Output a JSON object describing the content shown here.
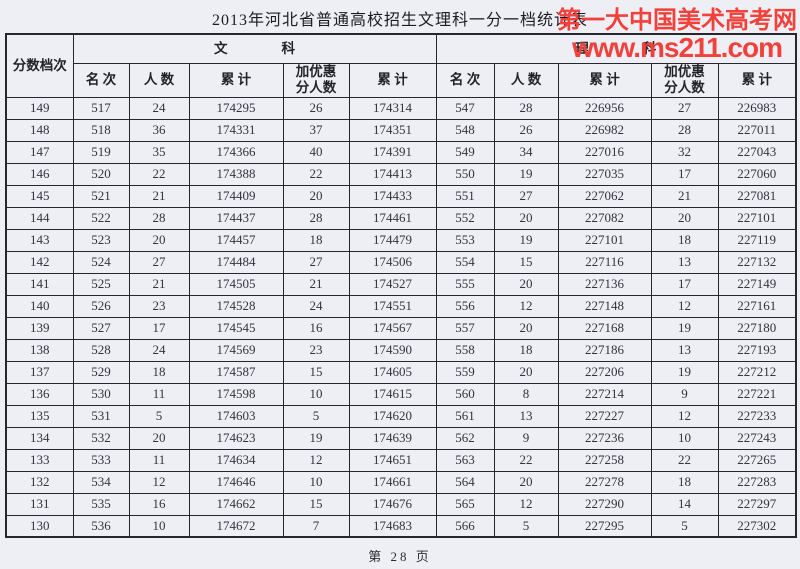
{
  "page": {
    "title": "2013年河北省普通高校招生文理科一分一档统计表",
    "footer": "第 28 页"
  },
  "watermark": {
    "line1": "第一大中国美术高考网",
    "line2": "www.ms211.com",
    "color": "#f2403a"
  },
  "table": {
    "score_col_header": "分数档次",
    "groups": [
      {
        "label": "文                科"
      },
      {
        "label": "理                科"
      }
    ],
    "sub_headers": [
      "名  次",
      "人  数",
      "累  计",
      "加优惠\n分人数",
      "累  计"
    ],
    "rows": [
      [
        149,
        517,
        24,
        174295,
        26,
        174314,
        547,
        28,
        226956,
        27,
        226983
      ],
      [
        148,
        518,
        36,
        174331,
        37,
        174351,
        548,
        26,
        226982,
        28,
        227011
      ],
      [
        147,
        519,
        35,
        174366,
        40,
        174391,
        549,
        34,
        227016,
        32,
        227043
      ],
      [
        146,
        520,
        22,
        174388,
        22,
        174413,
        550,
        19,
        227035,
        17,
        227060
      ],
      [
        145,
        521,
        21,
        174409,
        20,
        174433,
        551,
        27,
        227062,
        21,
        227081
      ],
      [
        144,
        522,
        28,
        174437,
        28,
        174461,
        552,
        20,
        227082,
        20,
        227101
      ],
      [
        143,
        523,
        20,
        174457,
        18,
        174479,
        553,
        19,
        227101,
        18,
        227119
      ],
      [
        142,
        524,
        27,
        174484,
        27,
        174506,
        554,
        15,
        227116,
        13,
        227132
      ],
      [
        141,
        525,
        21,
        174505,
        21,
        174527,
        555,
        20,
        227136,
        17,
        227149
      ],
      [
        140,
        526,
        23,
        174528,
        24,
        174551,
        556,
        12,
        227148,
        12,
        227161
      ],
      [
        139,
        527,
        17,
        174545,
        16,
        174567,
        557,
        20,
        227168,
        19,
        227180
      ],
      [
        138,
        528,
        24,
        174569,
        23,
        174590,
        558,
        18,
        227186,
        13,
        227193
      ],
      [
        137,
        529,
        18,
        174587,
        15,
        174605,
        559,
        20,
        227206,
        19,
        227212
      ],
      [
        136,
        530,
        11,
        174598,
        10,
        174615,
        560,
        8,
        227214,
        9,
        227221
      ],
      [
        135,
        531,
        5,
        174603,
        5,
        174620,
        561,
        13,
        227227,
        12,
        227233
      ],
      [
        134,
        532,
        20,
        174623,
        19,
        174639,
        562,
        9,
        227236,
        10,
        227243
      ],
      [
        133,
        533,
        11,
        174634,
        12,
        174651,
        563,
        22,
        227258,
        22,
        227265
      ],
      [
        132,
        534,
        12,
        174646,
        10,
        174661,
        564,
        20,
        227278,
        18,
        227283
      ],
      [
        131,
        535,
        16,
        174662,
        15,
        174676,
        565,
        12,
        227290,
        14,
        227297
      ],
      [
        130,
        536,
        10,
        174672,
        7,
        174683,
        566,
        5,
        227295,
        5,
        227302
      ]
    ]
  },
  "chart_data": {
    "type": "table",
    "title": "2013年河北省普通高校招生文理科一分一档统计表",
    "columns": [
      "分数档次",
      "文科-名次",
      "文科-人数",
      "文科-累计",
      "文科-加优惠分人数",
      "文科-累计",
      "理科-名次",
      "理科-人数",
      "理科-累计",
      "理科-加优惠分人数",
      "理科-累计"
    ],
    "page_label": "第 28 页"
  }
}
